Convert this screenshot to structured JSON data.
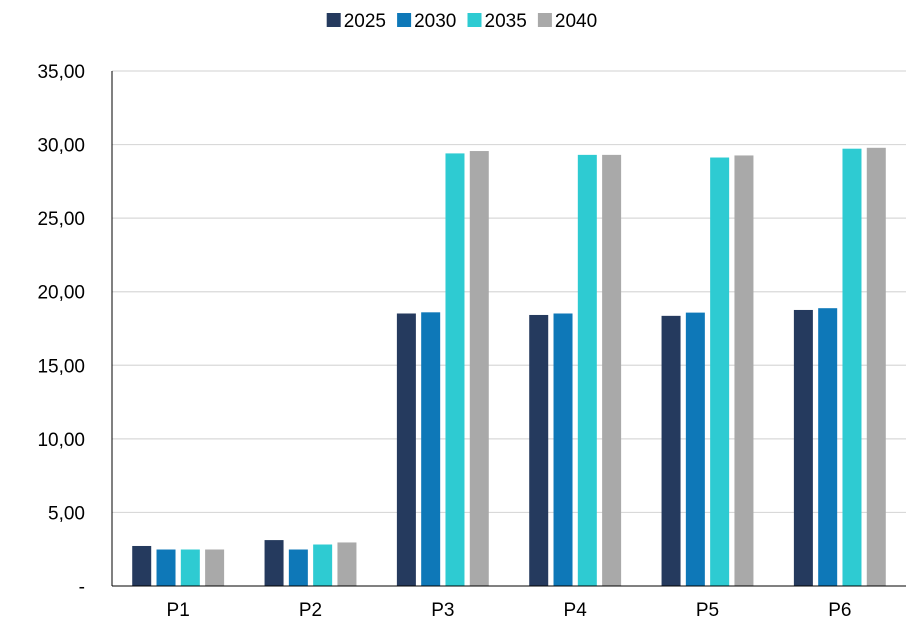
{
  "chart_data": {
    "type": "bar",
    "title": "",
    "xlabel": "",
    "ylabel": "",
    "categories": [
      "P1",
      "P2",
      "P3",
      "P4",
      "P5",
      "P6"
    ],
    "series": [
      {
        "name": "2025",
        "color": "#253a5e",
        "values": [
          2.72,
          3.12,
          18.52,
          18.42,
          18.36,
          18.76
        ]
      },
      {
        "name": "2030",
        "color": "#0e78b8",
        "values": [
          2.48,
          2.48,
          18.6,
          18.52,
          18.58,
          18.88
        ]
      },
      {
        "name": "2035",
        "color": "#2ecbd2",
        "values": [
          2.48,
          2.82,
          29.4,
          29.3,
          29.12,
          29.72
        ]
      },
      {
        "name": "2040",
        "color": "#a9a9a9",
        "values": [
          2.48,
          2.96,
          29.56,
          29.3,
          29.26,
          29.78
        ]
      }
    ],
    "ylim": [
      0,
      35
    ],
    "yticks": [
      0,
      5,
      10,
      15,
      20,
      25,
      30,
      35
    ],
    "ytick_labels": [
      "-",
      "5,00",
      "10,00",
      "15,00",
      "20,00",
      "25,00",
      "30,00",
      "35,00"
    ],
    "grid": true,
    "legend_position": "top-center"
  }
}
